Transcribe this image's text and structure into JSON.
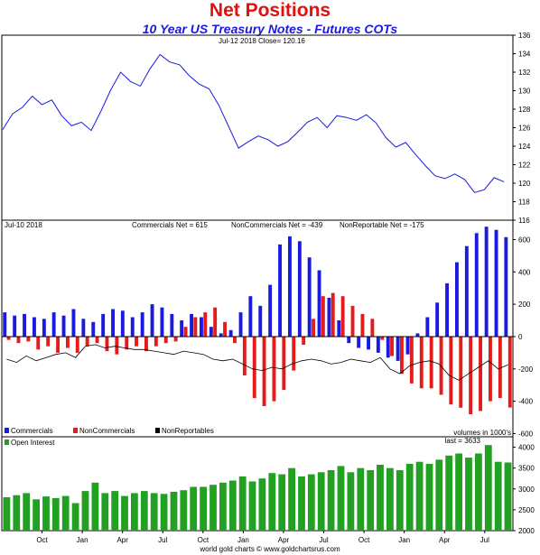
{
  "title": "Net Positions",
  "subtitle": "10 Year US Treasury Notes - Futures COTs",
  "footer": "world gold charts © www.goldchartsrus.com",
  "colors": {
    "title": "#e01010",
    "subtitle": "#1a1ae0",
    "price": "#1a1ae0",
    "commercials": "#1a1ae0",
    "noncommercials": "#e41c1c",
    "nonreportables": "#000000",
    "open_interest": "#22a022"
  },
  "chart_data": [
    {
      "type": "line",
      "panel": "price",
      "info_label": "Jul-12  2018   Close= 120.16",
      "ylim": [
        116,
        136
      ],
      "yticks": [
        116,
        118,
        120,
        122,
        124,
        126,
        128,
        130,
        132,
        134,
        136
      ],
      "series": [
        {
          "key": "price",
          "values": [
            125.8,
            127.5,
            128.2,
            129.4,
            128.5,
            129.0,
            127.3,
            126.2,
            126.6,
            125.7,
            127.8,
            130.1,
            132.0,
            131.0,
            130.5,
            132.4,
            133.9,
            133.1,
            132.8,
            131.6,
            130.7,
            130.2,
            128.4,
            126.1,
            123.8,
            124.5,
            125.1,
            124.7,
            124.0,
            124.5,
            125.5,
            126.6,
            127.1,
            126.0,
            127.3,
            127.1,
            126.8,
            127.4,
            126.5,
            124.9,
            123.9,
            124.4,
            123.1,
            121.9,
            120.8,
            120.5,
            121.0,
            120.4,
            119.0,
            119.3,
            120.6,
            120.16
          ]
        }
      ]
    },
    {
      "type": "bar",
      "panel": "net_positions",
      "info_date": "Jul-10  2018",
      "info_labels": [
        "Commercials Net = 615",
        "NonCommercials Net = -439",
        "NonReportable Net = -175"
      ],
      "ylim": [
        -620,
        720
      ],
      "yticks": [
        -600,
        -400,
        -200,
        0,
        200,
        400,
        600
      ],
      "units_note": "volumes in 1000's",
      "legend": [
        "Commercials",
        "NonCommercials",
        "NonReportables"
      ],
      "legend_placement": "bottom-left",
      "commercials": [
        150,
        130,
        140,
        120,
        110,
        150,
        130,
        170,
        110,
        90,
        140,
        170,
        160,
        120,
        150,
        200,
        180,
        140,
        100,
        140,
        120,
        60,
        20,
        40,
        150,
        250,
        190,
        320,
        570,
        620,
        590,
        490,
        410,
        240,
        100,
        -40,
        -70,
        -80,
        -100,
        -130,
        -150,
        -110,
        20,
        120,
        210,
        330,
        460,
        560,
        640,
        680,
        660,
        615
      ],
      "noncommercials": [
        -20,
        -40,
        -30,
        -80,
        -60,
        -100,
        -70,
        -100,
        -60,
        -40,
        -90,
        -110,
        -80,
        -60,
        -90,
        -60,
        -40,
        -30,
        60,
        120,
        150,
        180,
        90,
        -40,
        -240,
        -380,
        -430,
        -400,
        -330,
        -210,
        -50,
        110,
        250,
        270,
        250,
        190,
        140,
        110,
        -20,
        -120,
        -230,
        -290,
        -320,
        -320,
        -360,
        -420,
        -440,
        -480,
        -460,
        -400,
        -380,
        -439
      ],
      "nonreportables": [
        -140,
        -160,
        -120,
        -150,
        -130,
        -110,
        -100,
        -130,
        -60,
        -50,
        -70,
        -60,
        -70,
        -80,
        -80,
        -90,
        -100,
        -110,
        -90,
        -100,
        -110,
        -140,
        -150,
        -140,
        -170,
        -200,
        -210,
        -190,
        -200,
        -170,
        -150,
        -140,
        -150,
        -170,
        -160,
        -140,
        -150,
        -160,
        -130,
        -200,
        -230,
        -180,
        -160,
        -150,
        -170,
        -240,
        -270,
        -230,
        -190,
        -150,
        -200,
        -175
      ]
    },
    {
      "type": "bar",
      "panel": "open_interest",
      "legend": [
        "Open Interest"
      ],
      "legend_placement": "top-left",
      "last_label": "last = 3633",
      "ylim": [
        2000,
        4250
      ],
      "yticks": [
        2000,
        2500,
        3000,
        3500,
        4000
      ],
      "xlabels": [
        "Oct",
        "Jan",
        "Apr",
        "Jul",
        "Oct",
        "Jan",
        "Apr",
        "Jul",
        "Oct",
        "Jan",
        "Apr",
        "Jul"
      ],
      "values": [
        2800,
        2850,
        2900,
        2750,
        2820,
        2780,
        2830,
        2660,
        2950,
        3150,
        2900,
        2950,
        2830,
        2900,
        2950,
        2900,
        2880,
        2930,
        2970,
        3050,
        3050,
        3100,
        3150,
        3200,
        3300,
        3180,
        3250,
        3380,
        3350,
        3500,
        3300,
        3350,
        3400,
        3450,
        3550,
        3400,
        3500,
        3450,
        3580,
        3500,
        3450,
        3600,
        3650,
        3600,
        3700,
        3800,
        3850,
        3750,
        3850,
        4050,
        3650,
        3633
      ]
    }
  ]
}
